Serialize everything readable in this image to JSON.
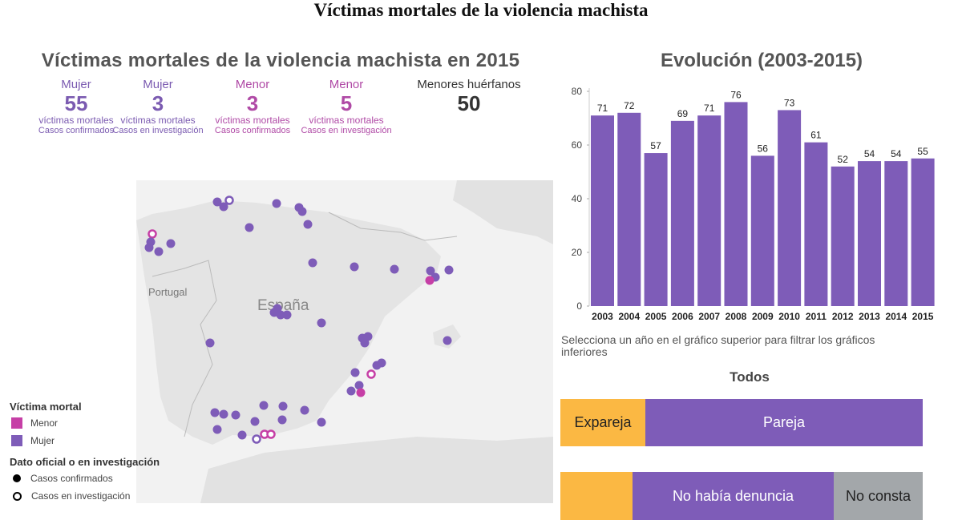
{
  "title": "Víctimas mortales de la violencia machista",
  "map": {
    "title": "Víctimas mortales de la violencia machista en 2015",
    "kpis": [
      {
        "type": "Mujer",
        "value": "55",
        "line1": "víctimas mortales",
        "line2": "Casos confirmados",
        "color": "#7b5bb1"
      },
      {
        "type": "Mujer",
        "value": "3",
        "line1": "víctimas mortales",
        "line2": "Casos en investigación",
        "color": "#7b5bb1"
      },
      {
        "type": "Menor",
        "value": "3",
        "line1": "víctimas mortales",
        "line2": "Casos confirmados",
        "color": "#b04aa6"
      },
      {
        "type": "Menor",
        "value": "5",
        "line1": "víctimas mortales",
        "line2": "Casos en investigación",
        "color": "#b04aa6"
      },
      {
        "type": "Menores huérfanos",
        "value": "50",
        "color": "#333333"
      }
    ],
    "labels": {
      "portugal": "Portugal",
      "espana": "España"
    },
    "legend": {
      "title1": "Víctima mortal",
      "menor": "Menor",
      "mujer": "Mujer",
      "title2": "Dato oficial o en investigación",
      "confirmados": "Casos confirmados",
      "investigacion": "Casos en investigación"
    },
    "colors": {
      "mujer": "#7e5cb8",
      "menor": "#c63fa6"
    }
  },
  "chart_data": {
    "type": "bar",
    "title": "Evolución (2003-2015)",
    "categories": [
      "2003",
      "2004",
      "2005",
      "2006",
      "2007",
      "2008",
      "2009",
      "2010",
      "2011",
      "2012",
      "2013",
      "2014",
      "2015"
    ],
    "values": [
      71,
      72,
      57,
      69,
      71,
      76,
      56,
      73,
      61,
      52,
      54,
      54,
      55
    ],
    "yticks": [
      0,
      20,
      40,
      60,
      80
    ],
    "ylim": [
      0,
      80
    ],
    "color": "#7e5cb8"
  },
  "filter": {
    "hint": "Selecciona un año en el gráfico superior para filtrar los gráficos inferiores",
    "selected": "Todos"
  },
  "relation": [
    {
      "label": "Expareja",
      "color": "#fbb843"
    },
    {
      "label": "Pareja",
      "color": "#7e5cb8"
    }
  ],
  "denuncia": [
    {
      "label": "",
      "color": "#fbb843"
    },
    {
      "label": "No había denuncia",
      "color": "#7e5cb8"
    },
    {
      "label": "No consta",
      "color": "#a3a7aa"
    }
  ]
}
